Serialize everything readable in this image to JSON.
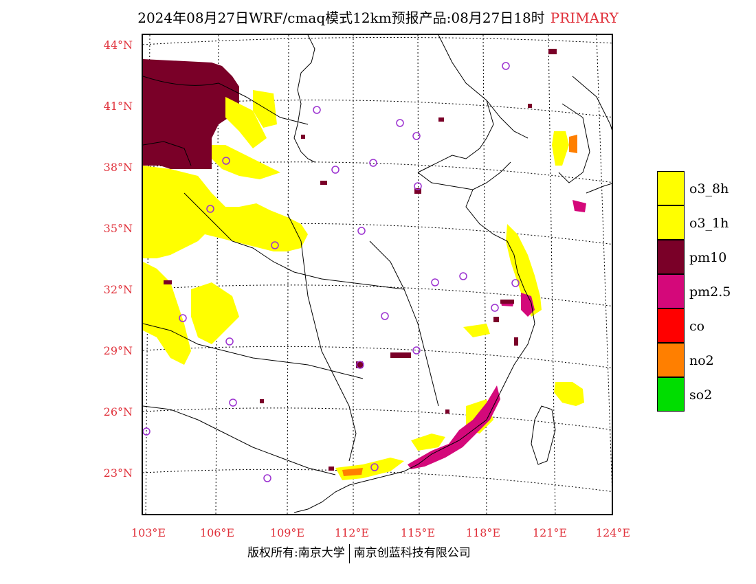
{
  "title": "2024年08月27日WRF/cmaq模式12km预报产品:08月27日18时",
  "title_tag": "PRIMARY",
  "lat_labels": [
    "44°N",
    "41°N",
    "38°N",
    "35°N",
    "32°N",
    "29°N",
    "26°N",
    "23°N"
  ],
  "lon_labels": [
    "103°E",
    "106°E",
    "109°E",
    "112°E",
    "115°E",
    "118°E",
    "121°E",
    "124°E"
  ],
  "legend": [
    {
      "label": "o3_8h",
      "color": "#ffff00"
    },
    {
      "label": "o3_1h",
      "color": "#ffff00"
    },
    {
      "label": "pm10",
      "color": "#7a0028"
    },
    {
      "label": "pm2.5",
      "color": "#d4087a"
    },
    {
      "label": "co",
      "color": "#ff0000"
    },
    {
      "label": "no2",
      "color": "#ff7f00"
    },
    {
      "label": "so2",
      "color": "#00dd00"
    }
  ],
  "footer": {
    "left": "版权所有:南京大学",
    "right": "南京创蓝科技有限公司"
  }
}
